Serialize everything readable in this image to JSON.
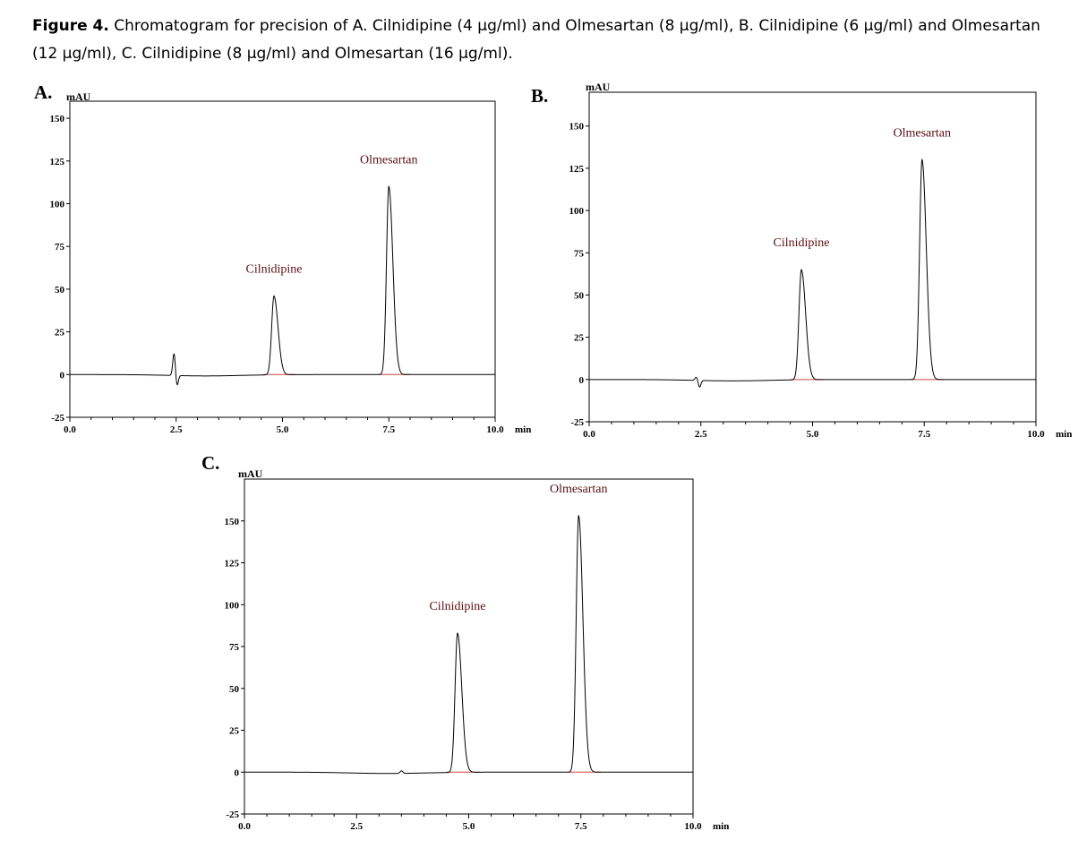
{
  "caption": {
    "lead": "Figure 4.",
    "text": " Chromatogram for precision of A. Cilnidipine (4 µg/ml) and Olmesartan (8 µg/ml), B. Cilnidipine (6 µg/ml) and Olmesartan (12 µg/ml), C. Cilnidipine (8 µg/ml) and Olmesartan (16 µg/ml)."
  },
  "colors": {
    "trace": "#000000",
    "baseline": "#d04040",
    "peak_label": "#5a0f14"
  },
  "chart_data": [
    {
      "type": "line",
      "panel": "A.",
      "ylabel": "mAU",
      "xunit": "min",
      "xlim": [
        0,
        10
      ],
      "ylim": [
        -25,
        160
      ],
      "xticks": [
        "0.0",
        "2.5",
        "5.0",
        "7.5",
        "10.0"
      ],
      "yticks": [
        "-25",
        "0",
        "25",
        "50",
        "75",
        "100",
        "125",
        "150"
      ],
      "baseline": 0,
      "peaks": [
        {
          "name": "Cilnidipine",
          "rt": 4.8,
          "height": 46
        },
        {
          "name": "Olmesartan",
          "rt": 7.5,
          "height": 110
        }
      ],
      "disturbance": {
        "rt": 2.45,
        "up": 13,
        "down": -6
      }
    },
    {
      "type": "line",
      "panel": "B.",
      "ylabel": "mAU",
      "xunit": "min",
      "xlim": [
        0,
        10
      ],
      "ylim": [
        -25,
        170
      ],
      "xticks": [
        "0.0",
        "2.5",
        "5.0",
        "7.5",
        "10.0"
      ],
      "yticks": [
        "-25",
        "0",
        "25",
        "50",
        "75",
        "100",
        "125",
        "150"
      ],
      "baseline": 0,
      "peaks": [
        {
          "name": "Cilnidipine",
          "rt": 4.75,
          "height": 65
        },
        {
          "name": "Olmesartan",
          "rt": 7.45,
          "height": 130
        }
      ],
      "disturbance": {
        "rt": 2.4,
        "up": 2,
        "down": -4
      }
    },
    {
      "type": "line",
      "panel": "C.",
      "ylabel": "mAU",
      "xunit": "min",
      "xlim": [
        0,
        10
      ],
      "ylim": [
        -25,
        175
      ],
      "xticks": [
        "0.0",
        "2.5",
        "5.0",
        "7.5",
        "10.0"
      ],
      "yticks": [
        "-25",
        "0",
        "25",
        "50",
        "75",
        "100",
        "125",
        "150"
      ],
      "baseline": 0,
      "peaks": [
        {
          "name": "Cilnidipine",
          "rt": 4.75,
          "height": 83
        },
        {
          "name": "Olmesartan",
          "rt": 7.45,
          "height": 153
        }
      ],
      "disturbance": {
        "rt": 3.5,
        "up": 1.5,
        "down": 0
      }
    }
  ]
}
